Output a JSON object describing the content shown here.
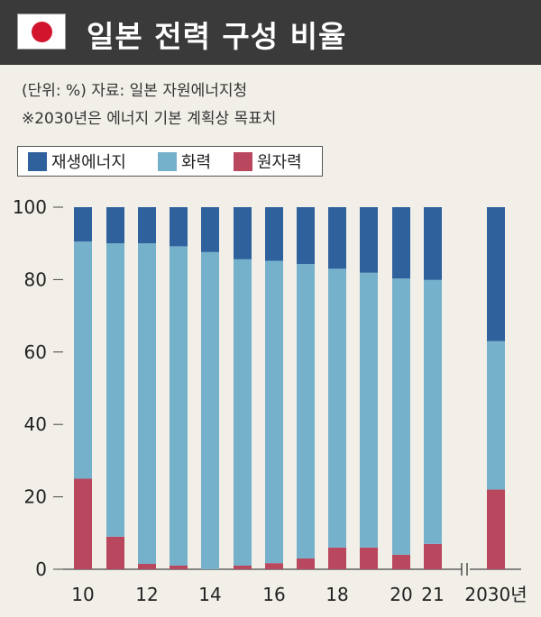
{
  "header": {
    "title": "일본 전력 구성 비율"
  },
  "notes": {
    "unit_source": "(단위: %)  자료: 일본 자원에너지청",
    "target_note": "※2030년은 에너지 기본 계획상 목표치"
  },
  "colors": {
    "renewable": "#2f619d",
    "thermal": "#76b1cc",
    "nuclear": "#b9475e",
    "flag_red": "#d2142c"
  },
  "chart_data": {
    "type": "bar",
    "stacked": true,
    "categories": [
      "2010",
      "2011",
      "2012",
      "2013",
      "2014",
      "2015",
      "2016",
      "2017",
      "2018",
      "2019",
      "2020",
      "2021",
      "2030"
    ],
    "x_tick_labels": [
      "10",
      "",
      "12",
      "",
      "14",
      "",
      "16",
      "",
      "18",
      "",
      "20",
      "21",
      "2030년"
    ],
    "series": [
      {
        "name": "원자력",
        "color": "#b9475e",
        "values": [
          25,
          9,
          1.5,
          1,
          0,
          1,
          1.7,
          3,
          6,
          6,
          4,
          7,
          22
        ]
      },
      {
        "name": "화력",
        "color": "#76b1cc",
        "values": [
          65.5,
          81,
          88.5,
          88.2,
          87.6,
          84.6,
          83.5,
          81.3,
          77,
          75.9,
          76.3,
          72.9,
          41
        ]
      },
      {
        "name": "재생에너지",
        "color": "#2f619d",
        "values": [
          9.5,
          10,
          10,
          10.8,
          12.4,
          14.4,
          14.8,
          15.7,
          17,
          18.1,
          19.7,
          20.1,
          37
        ]
      }
    ],
    "legend": [
      "재생에너지",
      "화력",
      "원자력"
    ],
    "legend_colors": [
      "#2f619d",
      "#76b1cc",
      "#b9475e"
    ],
    "y_ticks": [
      "0",
      "20",
      "40",
      "60",
      "80",
      "100"
    ],
    "ylim": [
      0,
      100
    ],
    "xlabel": "",
    "ylabel": "",
    "axis_break": true,
    "grid": false,
    "legend_position": "top-left"
  }
}
